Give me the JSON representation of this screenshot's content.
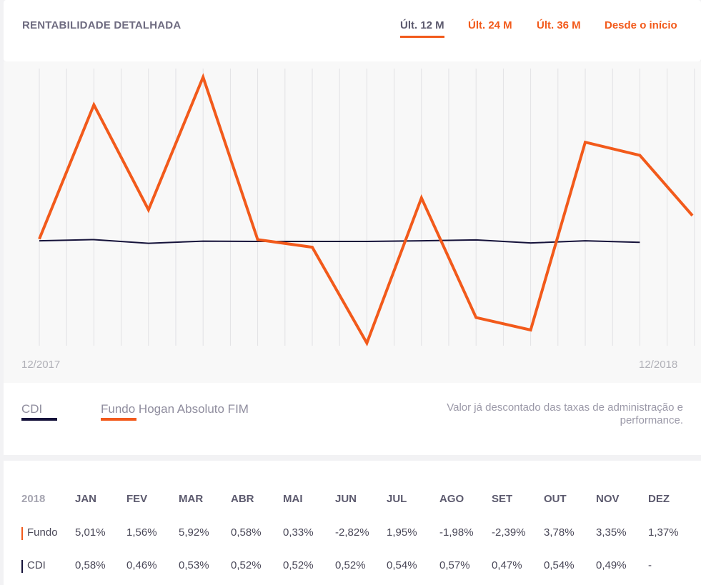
{
  "header": {
    "title": "RENTABILIDADE DETALHADA",
    "tabs": [
      {
        "label": "Últ. 12 M",
        "active": true
      },
      {
        "label": "Últ. 24 M",
        "active": false
      },
      {
        "label": "Últ. 36 M",
        "active": false
      },
      {
        "label": "Desde o início",
        "active": false
      }
    ]
  },
  "colors": {
    "fundo": "#f25a1b",
    "cdi": "#15123a",
    "accent": "#f25a1b"
  },
  "chart_data": {
    "type": "line",
    "x_start_label": "12/2017",
    "x_end_label": "12/2018",
    "categories": [
      "12/2017",
      "JAN",
      "FEV",
      "MAR",
      "ABR",
      "MAI",
      "JUN",
      "JUL",
      "AGO",
      "SET",
      "OUT",
      "NOV",
      "DEZ"
    ],
    "series": [
      {
        "name": "Fundo Hogan Absoluto FIM",
        "values": [
          0.6,
          5.01,
          1.56,
          5.92,
          0.58,
          0.33,
          -2.82,
          1.95,
          -1.98,
          -2.39,
          3.78,
          3.35,
          1.37
        ]
      },
      {
        "name": "CDI",
        "values": [
          0.54,
          0.58,
          0.46,
          0.53,
          0.52,
          0.52,
          0.52,
          0.54,
          0.57,
          0.47,
          0.54,
          0.49,
          null
        ]
      }
    ],
    "ylim": [
      -3.0,
      6.2
    ]
  },
  "legend": {
    "cdi_label": "CDI",
    "fundo_label": "Fundo Hogan Absoluto FIM",
    "note": "Valor já descontado das taxas de administração e performance."
  },
  "table": {
    "year": "2018",
    "months": [
      "JAN",
      "FEV",
      "MAR",
      "ABR",
      "MAI",
      "JUN",
      "JUL",
      "AGO",
      "SET",
      "OUT",
      "NOV",
      "DEZ"
    ],
    "rows": [
      {
        "label": "Fundo",
        "values": [
          "5,01%",
          "1,56%",
          "5,92%",
          "0,58%",
          "0,33%",
          "-2,82%",
          "1,95%",
          "-1,98%",
          "-2,39%",
          "3,78%",
          "3,35%",
          "1,37%"
        ]
      },
      {
        "label": "CDI",
        "values": [
          "0,58%",
          "0,46%",
          "0,53%",
          "0,52%",
          "0,52%",
          "0,52%",
          "0,54%",
          "0,57%",
          "0,47%",
          "0,54%",
          "0,49%",
          "-"
        ]
      }
    ]
  }
}
